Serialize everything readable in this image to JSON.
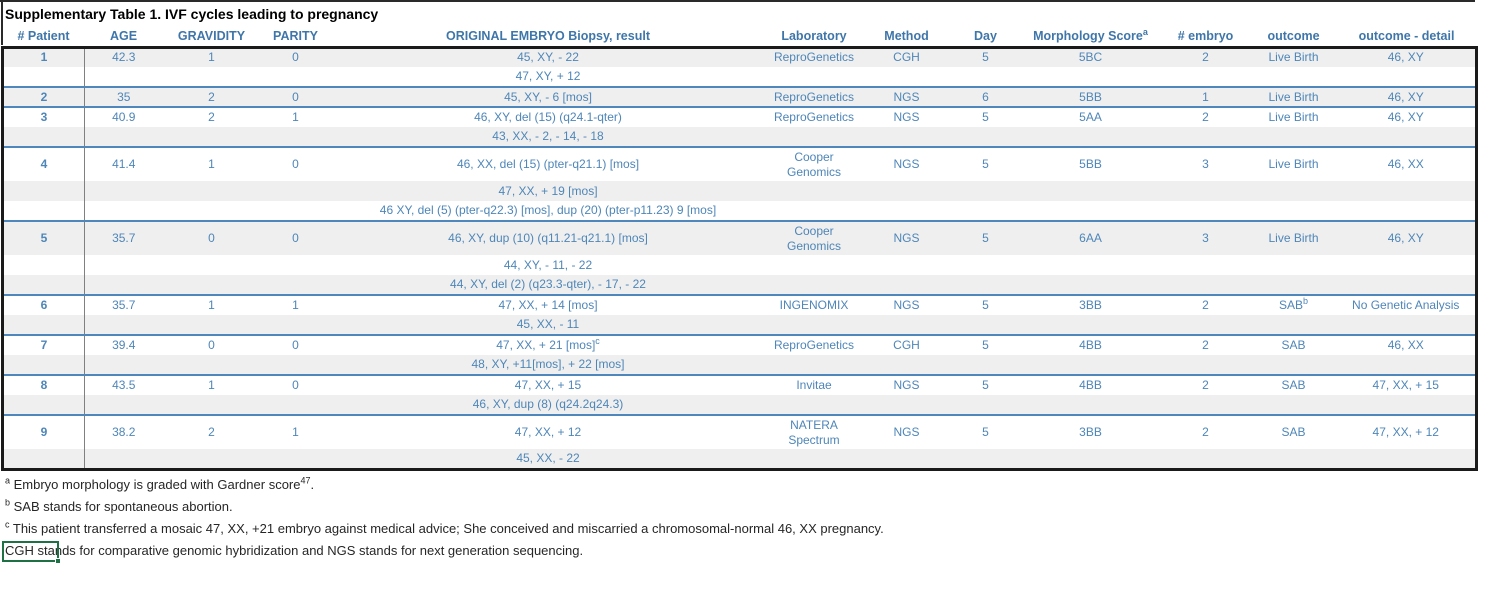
{
  "title": "Supplementary Table 1. IVF cycles leading to pregnancy",
  "colors": {
    "header_text": "#3E76A9",
    "body_text": "#4E86B8",
    "band_gray": "#EFEFEF",
    "group_separator_blue": "#4F87BC",
    "frame_black": "#1A1A1A",
    "patient_divider_gray": "#808080",
    "selection_green": "#1E7145",
    "footnote_text": "#262626"
  },
  "table": {
    "columns": [
      {
        "key": "patient",
        "label": "# Patient"
      },
      {
        "key": "age",
        "label": "AGE"
      },
      {
        "key": "gravidity",
        "label": "GRAVIDITY"
      },
      {
        "key": "parity",
        "label": "PARITY"
      },
      {
        "key": "embryo_result",
        "label": "ORIGINAL EMBRYO Biopsy, result"
      },
      {
        "key": "laboratory",
        "label": "Laboratory"
      },
      {
        "key": "method",
        "label": "Method"
      },
      {
        "key": "day",
        "label": "Day"
      },
      {
        "key": "morphology",
        "label": "Morphology Score",
        "sup": "a"
      },
      {
        "key": "n_embryo",
        "label": "# embryo"
      },
      {
        "key": "outcome",
        "label": "outcome"
      },
      {
        "key": "outcome_detail",
        "label": "outcome - detail"
      }
    ],
    "rows": [
      {
        "group_start": false,
        "tall": false,
        "shade": "gray",
        "cells": [
          "1",
          "42.3",
          "1",
          "0",
          "45, XY, - 22",
          "ReproGenetics",
          "CGH",
          "5",
          "5BC",
          "2",
          "Live Birth",
          "46, XY"
        ]
      },
      {
        "group_start": false,
        "tall": false,
        "shade": "white",
        "cells": [
          "",
          "",
          "",
          "",
          "47, XY, + 12",
          "",
          "",
          "",
          "",
          "",
          "",
          ""
        ]
      },
      {
        "group_start": true,
        "tall": false,
        "shade": "gray",
        "cells": [
          "2",
          "35",
          "2",
          "0",
          "45, XY, - 6 [mos]",
          "ReproGenetics",
          "NGS",
          "6",
          "5BB",
          "1",
          "Live Birth",
          "46, XY"
        ]
      },
      {
        "group_start": true,
        "tall": false,
        "shade": "white",
        "cells": [
          "3",
          "40.9",
          "2",
          "1",
          "46, XY, del (15) (q24.1-qter)",
          "ReproGenetics",
          "NGS",
          "5",
          "5AA",
          "2",
          "Live Birth",
          "46, XY"
        ]
      },
      {
        "group_start": false,
        "tall": false,
        "shade": "gray",
        "cells": [
          "",
          "",
          "",
          "",
          "43, XX, - 2, - 14, - 18",
          "",
          "",
          "",
          "",
          "",
          "",
          ""
        ]
      },
      {
        "group_start": true,
        "tall": true,
        "shade": "white",
        "cells": [
          "4",
          "41.4",
          "1",
          "0",
          "46, XX, del (15) (pter-q21.1) [mos]",
          "Cooper\nGenomics",
          "NGS",
          "5",
          "5BB",
          "3",
          "Live Birth",
          "46, XX"
        ]
      },
      {
        "group_start": false,
        "tall": false,
        "shade": "gray",
        "cells": [
          "",
          "",
          "",
          "",
          "47, XX, + 19 [mos]",
          "",
          "",
          "",
          "",
          "",
          "",
          ""
        ]
      },
      {
        "group_start": false,
        "tall": false,
        "shade": "white",
        "cells": [
          "",
          "",
          "",
          "",
          "46 XY, del (5) (pter-q22.3) [mos], dup (20) (pter-p11.23) 9 [mos]",
          "",
          "",
          "",
          "",
          "",
          "",
          ""
        ]
      },
      {
        "group_start": true,
        "tall": true,
        "shade": "gray",
        "cells": [
          "5",
          "35.7",
          "0",
          "0",
          "46, XY, dup (10) (q11.21-q21.1) [mos]",
          "Cooper\nGenomics",
          "NGS",
          "5",
          "6AA",
          "3",
          "Live Birth",
          "46, XY"
        ]
      },
      {
        "group_start": false,
        "tall": false,
        "shade": "white",
        "cells": [
          "",
          "",
          "",
          "",
          "44, XY, - 11, - 22",
          "",
          "",
          "",
          "",
          "",
          "",
          ""
        ]
      },
      {
        "group_start": false,
        "tall": false,
        "shade": "gray",
        "cells": [
          "",
          "",
          "",
          "",
          "44, XY, del (2) (q23.3-qter), - 17, - 22",
          "",
          "",
          "",
          "",
          "",
          "",
          ""
        ]
      },
      {
        "group_start": true,
        "tall": false,
        "shade": "white",
        "cells": [
          "6",
          "35.7",
          "1",
          "1",
          "47, XX, + 14 [mos]",
          "INGENOMIX",
          "NGS",
          "5",
          "3BB",
          "2",
          {
            "t": "SAB",
            "sup": "b"
          },
          "No Genetic Analysis"
        ]
      },
      {
        "group_start": false,
        "tall": false,
        "shade": "gray",
        "cells": [
          "",
          "",
          "",
          "",
          "45, XX, - 11",
          "",
          "",
          "",
          "",
          "",
          "",
          ""
        ]
      },
      {
        "group_start": true,
        "tall": false,
        "shade": "white",
        "cells": [
          "7",
          "39.4",
          "0",
          "0",
          {
            "t": "47, XX, + 21 [mos]",
            "sup": "c"
          },
          "ReproGenetics",
          "CGH",
          "5",
          "4BB",
          "2",
          "SAB",
          "46, XX"
        ]
      },
      {
        "group_start": false,
        "tall": false,
        "shade": "gray",
        "cells": [
          "",
          "",
          "",
          "",
          "48, XY, +11[mos], + 22 [mos]",
          "",
          "",
          "",
          "",
          "",
          "",
          ""
        ]
      },
      {
        "group_start": true,
        "tall": false,
        "shade": "white",
        "cells": [
          "8",
          "43.5",
          "1",
          "0",
          "47, XX, + 15",
          "Invitae",
          "NGS",
          "5",
          "4BB",
          "2",
          "SAB",
          "47, XX, + 15"
        ]
      },
      {
        "group_start": false,
        "tall": false,
        "shade": "gray",
        "cells": [
          "",
          "",
          "",
          "",
          "46, XY, dup (8) (q24.2q24.3)",
          "",
          "",
          "",
          "",
          "",
          "",
          ""
        ]
      },
      {
        "group_start": true,
        "tall": true,
        "shade": "white",
        "cells": [
          "9",
          "38.2",
          "2",
          "1",
          "47, XX, + 12",
          "NATERA\nSpectrum",
          "NGS",
          "5",
          "3BB",
          "2",
          "SAB",
          "47, XX, + 12"
        ]
      },
      {
        "group_start": false,
        "tall": false,
        "shade": "gray",
        "cells": [
          "",
          "",
          "",
          "",
          "45, XX, - 22",
          "",
          "",
          "",
          "",
          "",
          "",
          ""
        ]
      }
    ]
  },
  "footnotes": [
    {
      "selected": false,
      "parts": [
        {
          "sup": "a"
        },
        {
          "text": " Embryo morphology is graded with Gardner score"
        },
        {
          "sup": "47"
        },
        {
          "text": "."
        }
      ]
    },
    {
      "selected": false,
      "parts": [
        {
          "sup": "b"
        },
        {
          "text": " SAB stands for spontaneous abortion."
        }
      ]
    },
    {
      "selected": false,
      "parts": [
        {
          "sup": "c"
        },
        {
          "text": " This patient transferred a mosaic 47, XX, +21 embryo against medical advice; She conceived and miscarried a chromosomal-normal 46, XX pregnancy."
        }
      ]
    },
    {
      "selected": true,
      "parts": [
        {
          "text": "CGH stands for comparative genomic hybridization and NGS stands for next generation sequencing."
        }
      ]
    }
  ]
}
